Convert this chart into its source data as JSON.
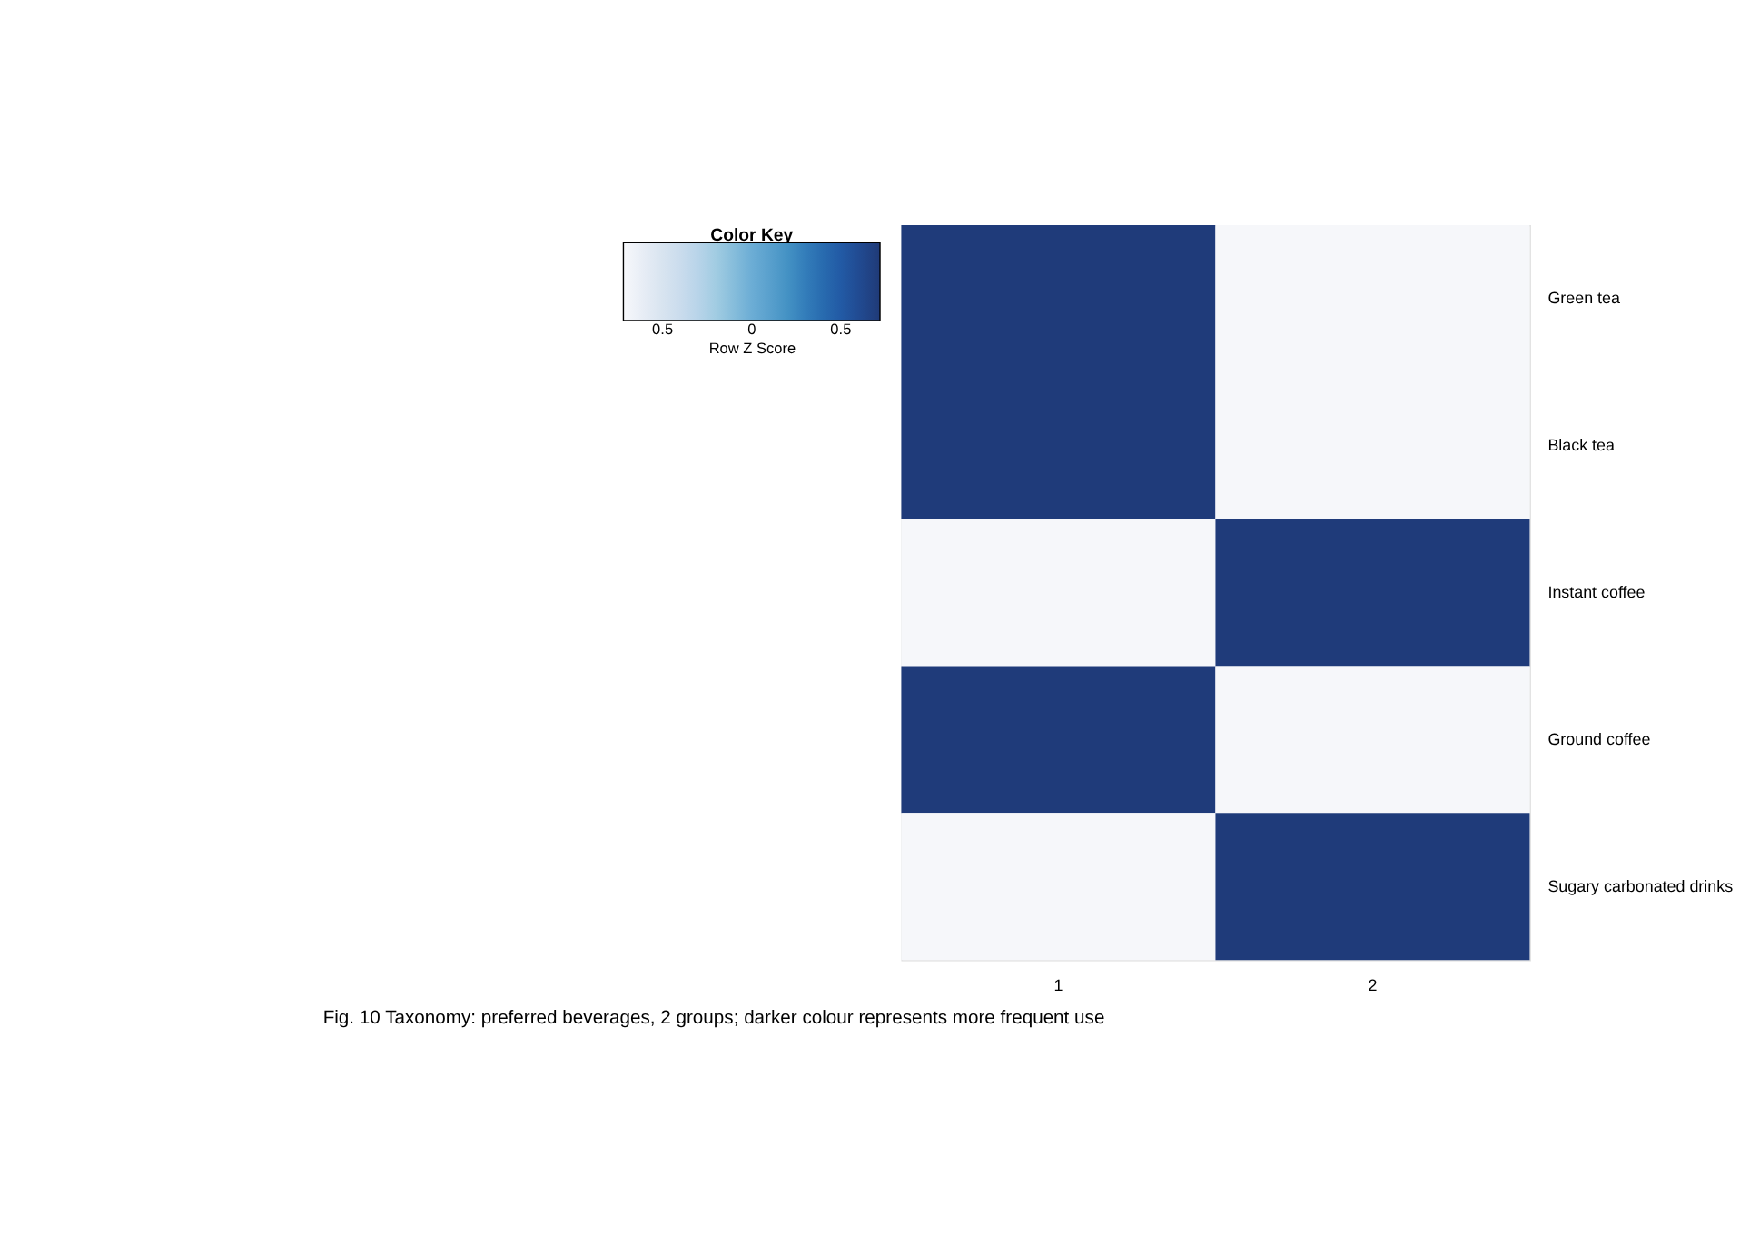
{
  "chart_data": {
    "type": "heatmap",
    "title": "Color Key",
    "clabel": "Row Z  Score",
    "categories": [
      "1",
      "2"
    ],
    "y_categories": [
      "Green tea",
      "Black tea",
      "Instant coffee",
      "Ground coffee",
      "Sugary carbonated drinks"
    ],
    "cells": [
      [
        0.71,
        -0.71
      ],
      [
        0.71,
        -0.71
      ],
      [
        -0.71,
        0.71
      ],
      [
        0.71,
        -0.71
      ],
      [
        -0.71,
        0.71
      ]
    ],
    "clim": [
      -0.72,
      0.72
    ],
    "cticks": [
      {
        "value": -0.5,
        "label": "0.5"
      },
      0,
      0.5
    ],
    "annotations": [
      "Fig. 10 Taxonomy: preferred beverages, 2 groups; darker colour represents more frequent use"
    ]
  }
}
